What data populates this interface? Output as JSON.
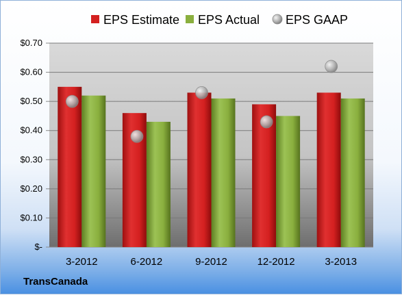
{
  "chart_data": {
    "type": "bar",
    "categories": [
      "3-2012",
      "6-2012",
      "9-2012",
      "12-2012",
      "3-2013"
    ],
    "series": [
      {
        "name": "EPS Estimate",
        "kind": "bar",
        "color": "#d42020",
        "values": [
          0.55,
          0.46,
          0.53,
          0.49,
          0.53
        ]
      },
      {
        "name": "EPS Actual",
        "kind": "bar",
        "color": "#8aaf3e",
        "values": [
          0.52,
          0.43,
          0.51,
          0.45,
          0.51
        ]
      },
      {
        "name": "EPS GAAP",
        "kind": "marker",
        "color": "#a8a8a8",
        "values": [
          0.5,
          0.38,
          0.53,
          0.43,
          0.62
        ]
      }
    ],
    "y_ticks": [
      0,
      0.1,
      0.2,
      0.3,
      0.4,
      0.5,
      0.6,
      0.7
    ],
    "y_tick_labels": [
      "$-",
      "$0.10",
      "$0.20",
      "$0.30",
      "$0.40",
      "$0.50",
      "$0.60",
      "$0.70"
    ],
    "ylim": [
      0,
      0.7
    ],
    "grid": true,
    "legend_position": "top"
  },
  "company_label": "TransCanada"
}
